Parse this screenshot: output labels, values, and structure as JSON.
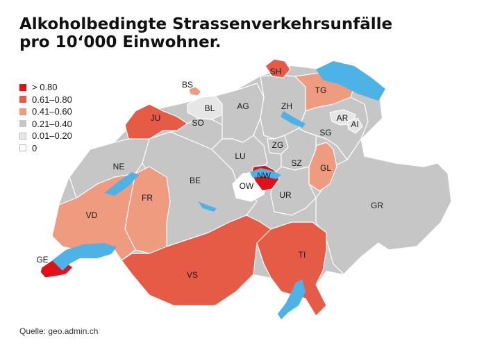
{
  "title_line1": "Alkoholbedingte Strassenverkehrsunfälle",
  "title_line2": "pro 10‘000 Einwohner.",
  "legend": [
    {
      "label": "> 0.80",
      "color": "#e0111b"
    },
    {
      "label": "0.61–0.80",
      "color": "#e65b45"
    },
    {
      "label": "0.41–0.60",
      "color": "#ee9b80"
    },
    {
      "label": "0.21–0.40",
      "color": "#c6c6c6"
    },
    {
      "label": "0.01–0.20",
      "color": "#e6e6e6"
    },
    {
      "label": "0",
      "color": "#ffffff"
    }
  ],
  "source": "Quelle: geo.admin.ch",
  "colors": {
    "lake": "#4db3e6",
    "border": "#ffffff"
  },
  "cantons": [
    {
      "code": "SH",
      "class": "0.61–0.80"
    },
    {
      "code": "BS",
      "class": "0.41–0.60"
    },
    {
      "code": "TG",
      "class": "0.41–0.60"
    },
    {
      "code": "BL",
      "class": "0.01–0.20"
    },
    {
      "code": "AG",
      "class": "0.21–0.40"
    },
    {
      "code": "ZH",
      "class": "0.21–0.40"
    },
    {
      "code": "JU",
      "class": "0.61–0.80"
    },
    {
      "code": "SO",
      "class": "0.21–0.40"
    },
    {
      "code": "AR",
      "class": "0.01–0.20"
    },
    {
      "code": "AI",
      "class": "0.01–0.20"
    },
    {
      "code": "SG",
      "class": "0.21–0.40"
    },
    {
      "code": "ZG",
      "class": "0.21–0.40"
    },
    {
      "code": "LU",
      "class": "0.21–0.40"
    },
    {
      "code": "SZ",
      "class": "0.21–0.40"
    },
    {
      "code": "GL",
      "class": "0.41–0.60"
    },
    {
      "code": "NE",
      "class": "0.21–0.40"
    },
    {
      "code": "BE",
      "class": "0.21–0.40"
    },
    {
      "code": "NW",
      "class": "> 0.80"
    },
    {
      "code": "OW",
      "class": "0"
    },
    {
      "code": "UR",
      "class": "0.21–0.40"
    },
    {
      "code": "FR",
      "class": "0.41–0.60"
    },
    {
      "code": "GR",
      "class": "0.21–0.40"
    },
    {
      "code": "VD",
      "class": "0.41–0.60"
    },
    {
      "code": "TI",
      "class": "0.61–0.80"
    },
    {
      "code": "GE",
      "class": "> 0.80"
    },
    {
      "code": "VS",
      "class": "0.61–0.80"
    }
  ]
}
